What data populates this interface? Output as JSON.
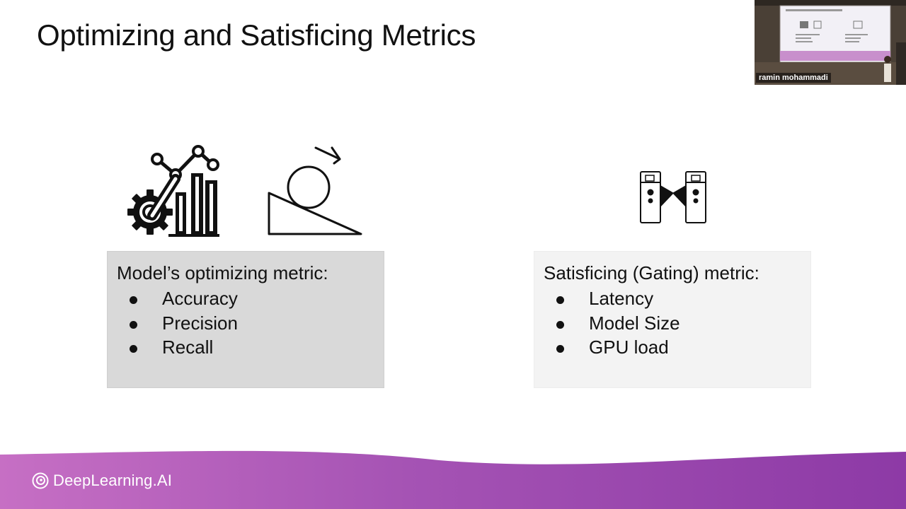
{
  "slide": {
    "title": "Optimizing and Satisficing Metrics"
  },
  "icons": {
    "left_1": "gear-chart-icon",
    "left_2": "ball-on-slope-icon",
    "right": "turnstile-gate-icon"
  },
  "optimizing_box": {
    "heading": "Model’s optimizing metric:",
    "items": [
      "Accuracy",
      "Precision",
      "Recall"
    ]
  },
  "satisficing_box": {
    "heading": "Satisficing (Gating) metric:",
    "items": [
      "Latency",
      "Model Size",
      "GPU load"
    ]
  },
  "footer": {
    "brand": "DeepLearning.AI"
  },
  "video_tile": {
    "participant_name": "ramin mohammadi"
  },
  "colors": {
    "footer_gradient_start": "#c66fc4",
    "footer_gradient_end": "#8d3aa6",
    "left_box_bg": "#d9d9d9",
    "right_box_bg": "#f3f3f3"
  }
}
